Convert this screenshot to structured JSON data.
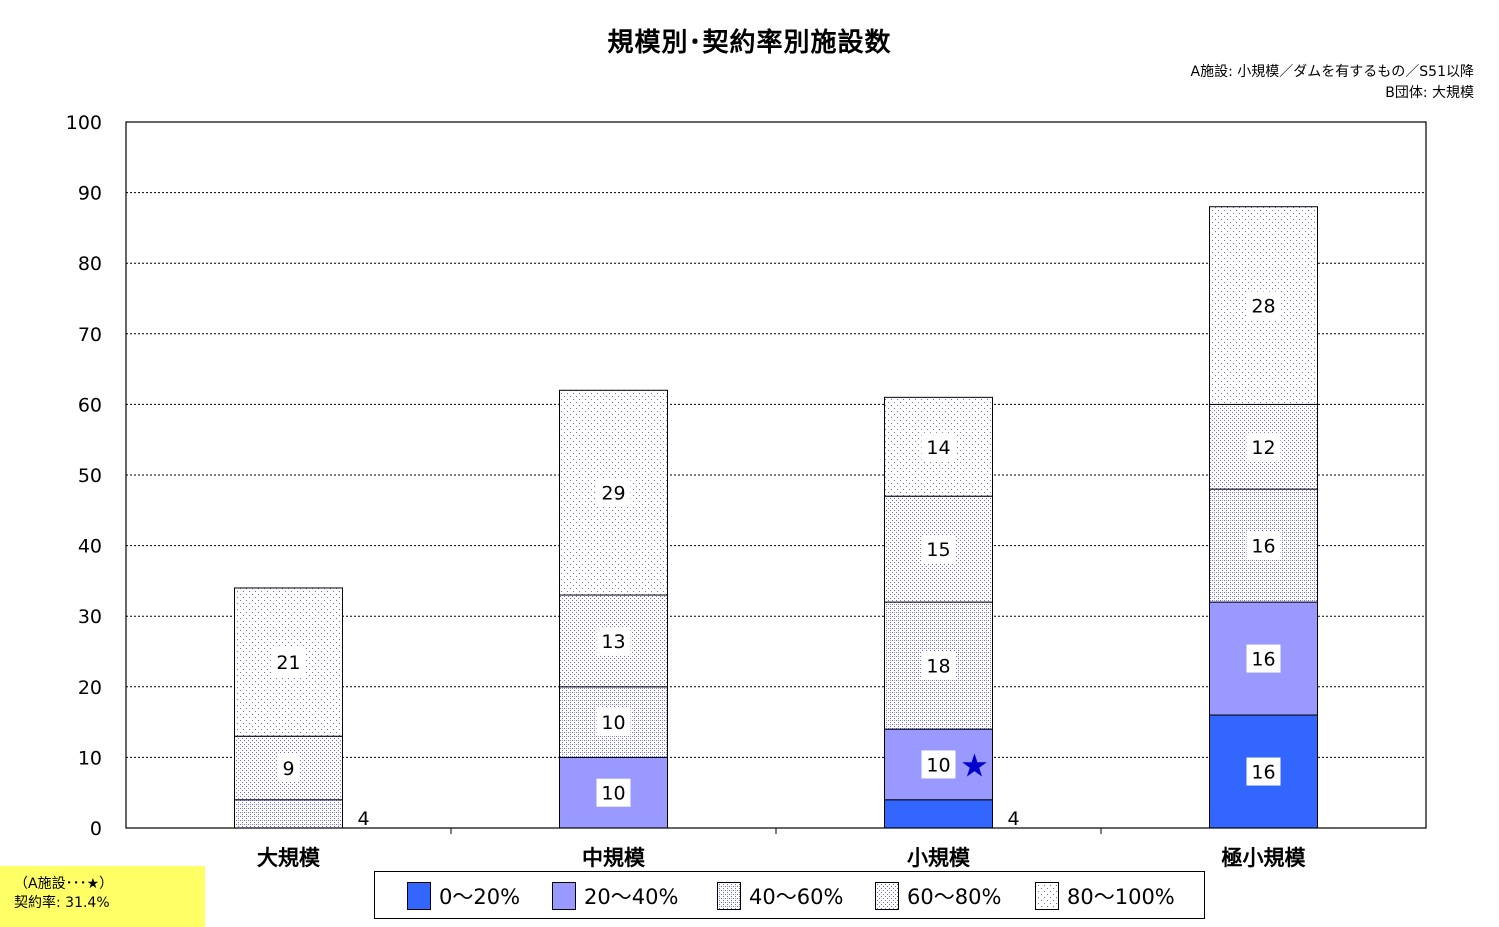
{
  "chart_data": {
    "type": "bar",
    "stacked": true,
    "title": "規模別･契約率別施設数",
    "categories": [
      "大規模",
      "中規模",
      "小規模",
      "極小規模"
    ],
    "series": [
      {
        "name": "0～20%",
        "values": [
          0,
          0,
          4,
          16
        ],
        "labels": [
          "",
          "",
          "4",
          "16"
        ],
        "color": "#3366ff",
        "pattern": "solid"
      },
      {
        "name": "20～40%",
        "values": [
          0,
          10,
          10,
          16
        ],
        "labels": [
          "",
          "10",
          "10",
          "16"
        ],
        "color": "#9999ff",
        "pattern": "solid"
      },
      {
        "name": "40～60%",
        "values": [
          4,
          10,
          18,
          16
        ],
        "labels": [
          "4",
          "10",
          "18",
          "16"
        ],
        "color": "#6666ff",
        "pattern": "dense-dots"
      },
      {
        "name": "60～80%",
        "values": [
          9,
          13,
          15,
          12
        ],
        "labels": [
          "9",
          "13",
          "15",
          "12"
        ],
        "color": "#6666ff",
        "pattern": "medium-dots"
      },
      {
        "name": "80～100%",
        "values": [
          21,
          29,
          14,
          28
        ],
        "labels": [
          "21",
          "29",
          "14",
          "28"
        ],
        "color": "#6666ff",
        "pattern": "sparse-dots"
      }
    ],
    "ylim": [
      0,
      100
    ],
    "y_ticks": [
      "0",
      "10",
      "20",
      "30",
      "40",
      "50",
      "60",
      "70",
      "80",
      "90",
      "100"
    ],
    "grid": true,
    "legend_position": "bottom",
    "marker": {
      "category": "小規模",
      "series": "20～40%",
      "symbol": "★",
      "color": "#0000cc"
    }
  },
  "notes": {
    "line1": "A施設: 小規模／ダムを有するもの／S51以降",
    "line2": "B団体: 大規模"
  },
  "infobox": {
    "line1": "（A施設･･･★）",
    "line2": "契約率: 31.4%",
    "color": "#ffff66"
  }
}
